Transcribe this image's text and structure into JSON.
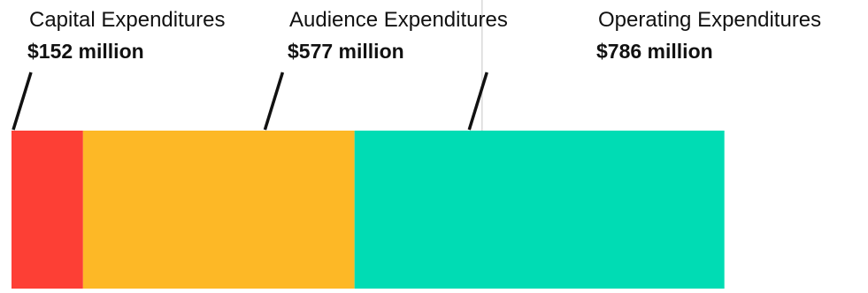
{
  "chart_data": {
    "type": "bar",
    "orientation": "horizontal-stacked",
    "title": "",
    "xlabel": "",
    "ylabel": "",
    "categories": [
      "Capital Expenditures",
      "Audience Expenditures",
      "Operating Expenditures"
    ],
    "values": [
      152,
      577,
      786
    ],
    "value_labels": [
      "$152 million",
      "$577 million",
      "$786 million"
    ],
    "unit": "million",
    "colors": [
      "#fd3f35",
      "#fdb826",
      "#00dcb4"
    ],
    "divider_at": 1000,
    "grid": false,
    "legend": "none"
  }
}
